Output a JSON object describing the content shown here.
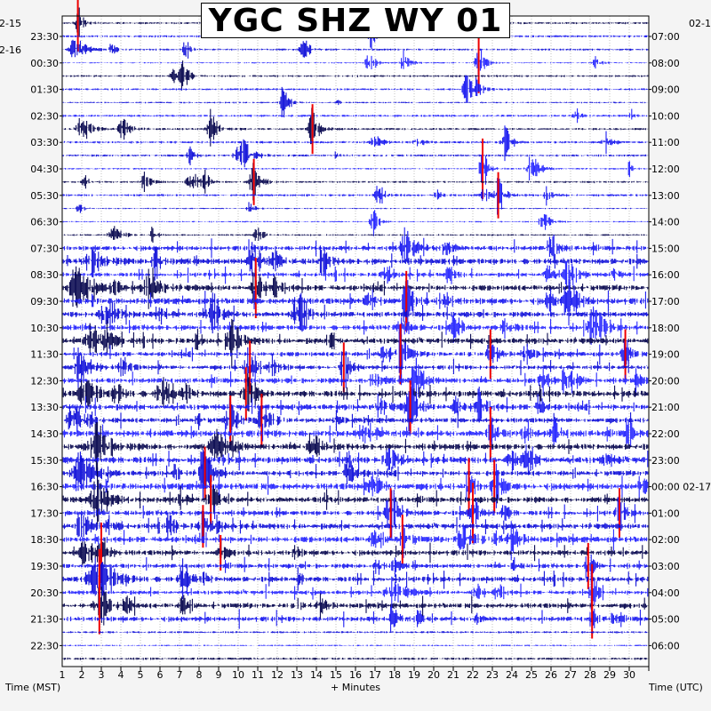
{
  "chart_data": {
    "type": "helicorder",
    "title": "YGC SHZ WY 01",
    "xlabel": "+ Minutes",
    "left_axis_label": "Time (MST)",
    "right_axis_label": "Time (UTC)",
    "x_ticks": [
      1,
      2,
      3,
      4,
      5,
      6,
      7,
      8,
      9,
      10,
      11,
      12,
      13,
      14,
      15,
      16,
      17,
      18,
      19,
      20,
      21,
      22,
      23,
      24,
      25,
      26,
      27,
      28,
      29,
      30
    ],
    "left_date_labels": [
      "2-15",
      "2-16"
    ],
    "left_row_labels": [
      "23:30",
      "00:30",
      "01:30",
      "02:30",
      "03:30",
      "04:30",
      "05:30",
      "06:30",
      "07:30",
      "08:30",
      "09:30",
      "10:30",
      "11:30",
      "12:30",
      "13:30",
      "14:30",
      "15:30",
      "16:30",
      "17:30",
      "18:30",
      "19:30",
      "20:30",
      "21:30",
      "22:30"
    ],
    "right_date_label_top": "02-1",
    "right_row_labels": [
      "07:00",
      "08:00",
      "09:00",
      "10:00",
      "11:00",
      "12:00",
      "13:00",
      "14:00",
      "15:00",
      "16:00",
      "17:00",
      "18:00",
      "19:00",
      "20:00",
      "21:00",
      "22:00",
      "23:00",
      "00:00 02-17",
      "01:00",
      "02:00",
      "03:00",
      "04:00",
      "05:00",
      "06:00"
    ],
    "trace_colors": [
      "#00004a",
      "#1414f0",
      "#0a0ad8",
      "#2020ff"
    ],
    "clip_color": "#ee0000",
    "grid": true,
    "events": [
      {
        "row": 0,
        "minute": 0.8,
        "amp": 28,
        "dur": 0.5,
        "clip": true
      },
      {
        "row": 1,
        "minute": 0.7,
        "amp": 22,
        "dur": 0.8
      },
      {
        "row": 1,
        "minute": 17.5,
        "amp": 16,
        "dur": 0.5
      },
      {
        "row": 1,
        "minute": 21.3,
        "amp": 30,
        "dur": 0.5,
        "clip": true
      },
      {
        "row": 1,
        "minute": 12.3,
        "amp": 18,
        "dur": 0.6
      },
      {
        "row": 2,
        "minute": 6.2,
        "amp": 16,
        "dur": 0.6
      },
      {
        "row": 2,
        "minute": 20.7,
        "amp": 18,
        "dur": 0.7
      },
      {
        "row": 3,
        "minute": 11.3,
        "amp": 22,
        "dur": 0.5
      },
      {
        "row": 3,
        "minute": 29.1,
        "amp": 8,
        "dur": 0.3
      },
      {
        "row": 4,
        "minute": 1.0,
        "amp": 18,
        "dur": 0.8
      },
      {
        "row": 4,
        "minute": 3.1,
        "amp": 14,
        "dur": 0.7
      },
      {
        "row": 4,
        "minute": 7.6,
        "amp": 20,
        "dur": 0.6
      },
      {
        "row": 4,
        "minute": 12.8,
        "amp": 24,
        "dur": 0.6,
        "clip": true
      },
      {
        "row": 4,
        "minute": 22.7,
        "amp": 16,
        "dur": 0.5
      },
      {
        "row": 5,
        "minute": 9.3,
        "amp": 20,
        "dur": 0.8
      },
      {
        "row": 5,
        "minute": 21.5,
        "amp": 30,
        "dur": 0.5,
        "clip": true
      },
      {
        "row": 5,
        "minute": 23.9,
        "amp": 16,
        "dur": 0.6
      },
      {
        "row": 5,
        "minute": 29.0,
        "amp": 10,
        "dur": 0.3
      },
      {
        "row": 6,
        "minute": 4.2,
        "amp": 12,
        "dur": 0.6
      },
      {
        "row": 6,
        "minute": 6.6,
        "amp": 16,
        "dur": 0.7
      },
      {
        "row": 6,
        "minute": 9.8,
        "amp": 22,
        "dur": 0.7,
        "clip": true
      },
      {
        "row": 6,
        "minute": 16.2,
        "amp": 14,
        "dur": 0.6
      },
      {
        "row": 6,
        "minute": 22.3,
        "amp": 22,
        "dur": 0.6,
        "clip": true
      },
      {
        "row": 7,
        "minute": 15.9,
        "amp": 18,
        "dur": 0.5
      },
      {
        "row": 7,
        "minute": 24.6,
        "amp": 14,
        "dur": 0.6
      },
      {
        "row": 8,
        "minute": 17.6,
        "amp": 22,
        "dur": 1.0
      },
      {
        "row": 8,
        "minute": 19.6,
        "amp": 16,
        "dur": 0.6
      },
      {
        "row": 8,
        "minute": 25.0,
        "amp": 24,
        "dur": 0.6
      },
      {
        "row": 9,
        "minute": 1.6,
        "amp": 22,
        "dur": 1.0
      },
      {
        "row": 9,
        "minute": 4.8,
        "amp": 18,
        "dur": 0.8
      },
      {
        "row": 9,
        "minute": 9.8,
        "amp": 24,
        "dur": 0.8
      },
      {
        "row": 9,
        "minute": 13.3,
        "amp": 16,
        "dur": 0.6
      },
      {
        "row": 9,
        "minute": 25.9,
        "amp": 20,
        "dur": 0.8
      },
      {
        "row": 10,
        "minute": 0.8,
        "amp": 24,
        "dur": 1.2
      },
      {
        "row": 10,
        "minute": 4.5,
        "amp": 22,
        "dur": 1.0
      },
      {
        "row": 10,
        "minute": 9.9,
        "amp": 30,
        "dur": 0.6,
        "clip": true
      },
      {
        "row": 10,
        "minute": 17.6,
        "amp": 30,
        "dur": 0.6,
        "clip": true
      },
      {
        "row": 10,
        "minute": 25.9,
        "amp": 22,
        "dur": 1.0
      },
      {
        "row": 11,
        "minute": 2.3,
        "amp": 24,
        "dur": 1.0
      },
      {
        "row": 11,
        "minute": 7.7,
        "amp": 26,
        "dur": 0.8
      },
      {
        "row": 11,
        "minute": 12.0,
        "amp": 22,
        "dur": 0.8
      },
      {
        "row": 11,
        "minute": 20.1,
        "amp": 24,
        "dur": 0.6
      },
      {
        "row": 11,
        "minute": 27.3,
        "amp": 22,
        "dur": 0.8
      },
      {
        "row": 12,
        "minute": 1.5,
        "amp": 26,
        "dur": 1.0
      },
      {
        "row": 12,
        "minute": 8.7,
        "amp": 24,
        "dur": 0.8
      },
      {
        "row": 12,
        "minute": 17.3,
        "amp": 30,
        "dur": 0.6,
        "clip": true
      },
      {
        "row": 12,
        "minute": 21.9,
        "amp": 24,
        "dur": 0.6,
        "clip": true
      },
      {
        "row": 12,
        "minute": 28.8,
        "amp": 24,
        "dur": 0.5,
        "clip": true
      },
      {
        "row": 13,
        "minute": 0.9,
        "amp": 26,
        "dur": 1.0
      },
      {
        "row": 13,
        "minute": 9.6,
        "amp": 26,
        "dur": 0.8,
        "clip": true
      },
      {
        "row": 13,
        "minute": 14.4,
        "amp": 24,
        "dur": 0.6,
        "clip": true
      },
      {
        "row": 13,
        "minute": 18.1,
        "amp": 26,
        "dur": 0.8
      },
      {
        "row": 13,
        "minute": 25.8,
        "amp": 24,
        "dur": 0.8
      },
      {
        "row": 14,
        "minute": 1.2,
        "amp": 24,
        "dur": 1.0
      },
      {
        "row": 14,
        "minute": 5.1,
        "amp": 22,
        "dur": 0.8
      },
      {
        "row": 14,
        "minute": 9.4,
        "amp": 26,
        "dur": 0.7,
        "clip": true
      },
      {
        "row": 14,
        "minute": 17.8,
        "amp": 26,
        "dur": 0.8,
        "clip": true
      },
      {
        "row": 14,
        "minute": 21.3,
        "amp": 24,
        "dur": 0.7
      },
      {
        "row": 15,
        "minute": 0.6,
        "amp": 26,
        "dur": 1.0
      },
      {
        "row": 15,
        "minute": 8.6,
        "amp": 24,
        "dur": 0.7,
        "clip": true
      },
      {
        "row": 15,
        "minute": 10.2,
        "amp": 26,
        "dur": 0.8,
        "clip": true
      },
      {
        "row": 15,
        "minute": 21.9,
        "amp": 26,
        "dur": 0.5,
        "clip": true
      },
      {
        "row": 15,
        "minute": 29.0,
        "amp": 20,
        "dur": 0.5
      },
      {
        "row": 16,
        "minute": 1.8,
        "amp": 26,
        "dur": 1.2
      },
      {
        "row": 16,
        "minute": 7.9,
        "amp": 22,
        "dur": 0.8
      },
      {
        "row": 16,
        "minute": 12.8,
        "amp": 20,
        "dur": 0.7
      },
      {
        "row": 16,
        "minute": 23.8,
        "amp": 18,
        "dur": 0.7
      },
      {
        "row": 17,
        "minute": 0.9,
        "amp": 26,
        "dur": 1.2
      },
      {
        "row": 17,
        "minute": 7.3,
        "amp": 26,
        "dur": 0.7,
        "clip": true
      },
      {
        "row": 17,
        "minute": 14.6,
        "amp": 22,
        "dur": 0.8
      },
      {
        "row": 17,
        "minute": 20.8,
        "amp": 28,
        "dur": 0.5,
        "clip": true
      },
      {
        "row": 17,
        "minute": 22.1,
        "amp": 26,
        "dur": 0.5,
        "clip": true
      },
      {
        "row": 18,
        "minute": 1.8,
        "amp": 24,
        "dur": 1.0
      },
      {
        "row": 18,
        "minute": 7.6,
        "amp": 24,
        "dur": 0.6,
        "clip": true
      },
      {
        "row": 18,
        "minute": 16.8,
        "amp": 24,
        "dur": 0.8,
        "clip": true
      },
      {
        "row": 18,
        "minute": 21.0,
        "amp": 30,
        "dur": 0.6,
        "clip": true
      },
      {
        "row": 18,
        "minute": 28.5,
        "amp": 24,
        "dur": 0.5,
        "clip": true
      },
      {
        "row": 19,
        "minute": 1.0,
        "amp": 22,
        "dur": 0.8
      },
      {
        "row": 19,
        "minute": 7.2,
        "amp": 20,
        "dur": 0.6,
        "clip": true
      },
      {
        "row": 19,
        "minute": 17.4,
        "amp": 24,
        "dur": 0.6,
        "clip": true
      },
      {
        "row": 19,
        "minute": 20.5,
        "amp": 26,
        "dur": 0.8
      },
      {
        "row": 19,
        "minute": 23.0,
        "amp": 22,
        "dur": 0.7
      },
      {
        "row": 20,
        "minute": 1.2,
        "amp": 24,
        "dur": 0.8
      },
      {
        "row": 20,
        "minute": 2.0,
        "amp": 30,
        "dur": 0.5,
        "clip": true
      },
      {
        "row": 20,
        "minute": 8.1,
        "amp": 16,
        "dur": 0.5,
        "clip": true
      },
      {
        "row": 20,
        "minute": 26.9,
        "amp": 22,
        "dur": 0.5,
        "clip": true
      },
      {
        "row": 21,
        "minute": 1.9,
        "amp": 30,
        "dur": 1.5,
        "clip": true
      },
      {
        "row": 21,
        "minute": 6.2,
        "amp": 22,
        "dur": 0.7
      },
      {
        "row": 21,
        "minute": 22.3,
        "amp": 16,
        "dur": 0.5
      },
      {
        "row": 21,
        "minute": 27.1,
        "amp": 28,
        "dur": 0.4,
        "clip": true
      },
      {
        "row": 22,
        "minute": 1.9,
        "amp": 28,
        "dur": 0.8,
        "clip": true
      },
      {
        "row": 22,
        "minute": 3.2,
        "amp": 16,
        "dur": 0.5
      },
      {
        "row": 22,
        "minute": 6.2,
        "amp": 16,
        "dur": 0.5
      },
      {
        "row": 22,
        "minute": 13.2,
        "amp": 14,
        "dur": 0.6
      },
      {
        "row": 22,
        "minute": 27.1,
        "amp": 18,
        "dur": 0.4,
        "clip": true
      }
    ]
  }
}
